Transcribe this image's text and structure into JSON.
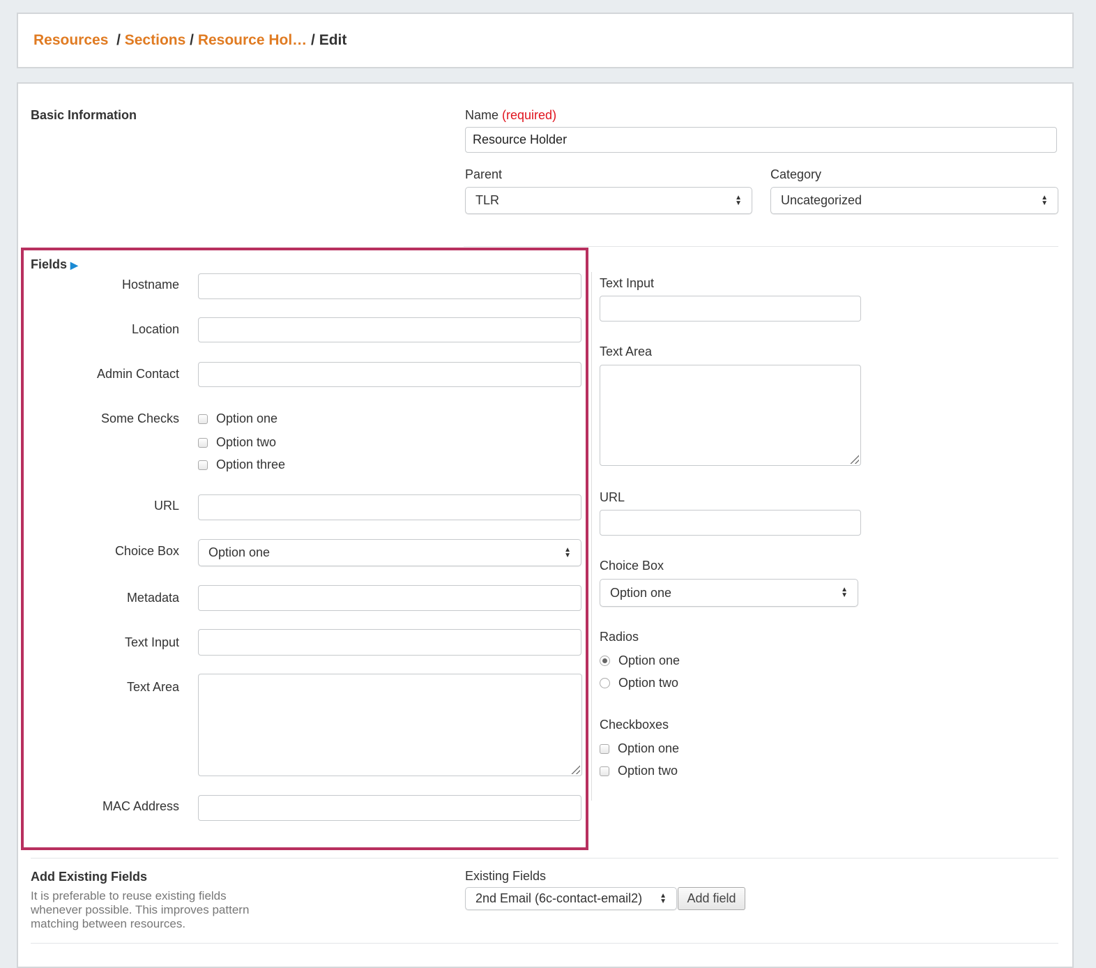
{
  "breadcrumb": {
    "items": [
      "Resources",
      "Sections",
      "Resource Hol…"
    ],
    "current": "Edit"
  },
  "basic": {
    "heading": "Basic Information",
    "name_label": "Name",
    "required": "(required)",
    "name_value": "Resource Holder",
    "parent_label": "Parent",
    "parent_value": "TLR",
    "category_label": "Category",
    "category_value": "Uncategorized"
  },
  "fields": {
    "heading": "Fields",
    "hostname": "Hostname",
    "location": "Location",
    "admin_contact": "Admin Contact",
    "some_checks": "Some Checks",
    "checks": [
      "Option one",
      "Option two",
      "Option three"
    ],
    "url": "URL",
    "choice_box": "Choice Box",
    "choice_value": "Option one",
    "metadata": "Metadata",
    "text_input": "Text Input",
    "text_area": "Text Area",
    "mac_address": "MAC Address"
  },
  "preview": {
    "text_input": "Text Input",
    "text_area": "Text Area",
    "url": "URL",
    "choice_box": "Choice Box",
    "choice_value": "Option one",
    "radios": "Radios",
    "radio_options": [
      "Option one",
      "Option two"
    ],
    "radio_selected": "Option one",
    "checkboxes": "Checkboxes",
    "checkbox_options": [
      "Option one",
      "Option two"
    ]
  },
  "existing": {
    "heading": "Add Existing Fields",
    "description": "It is preferable to reuse existing fields whenever possible. This improves pattern matching between resources.",
    "label": "Existing Fields",
    "value": "2nd Email (6c-contact-email2)",
    "button": "Add field"
  },
  "colors": {
    "accent": "#e07b22",
    "highlight": "#b8305f",
    "required": "#e0141e",
    "arrow": "#1a8ad4"
  }
}
